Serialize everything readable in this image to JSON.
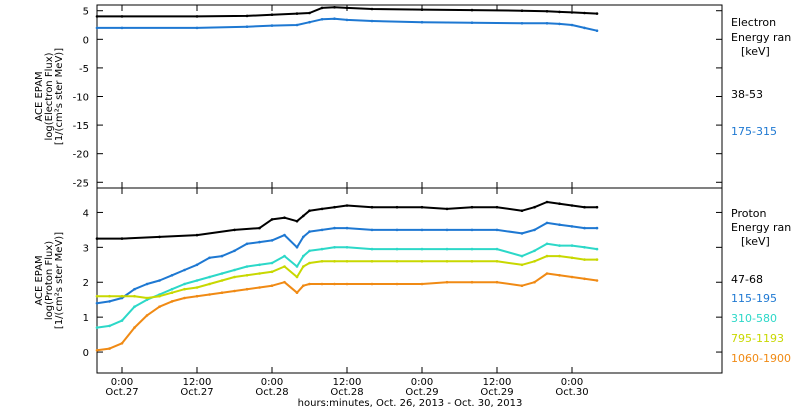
{
  "chart_data": [
    {
      "type": "scatter",
      "ylabel": [
        "ACE EPAM",
        "log(Electron Flux)",
        "[1/(cm²s ster MeV)]"
      ],
      "ylim": [
        -26,
        6
      ],
      "yticks": [
        5,
        0,
        -5,
        -10,
        -15,
        -20,
        -25
      ],
      "legend_title": [
        "Electron",
        "Energy ran",
        "[keV]"
      ],
      "series": [
        {
          "name": "38-53",
          "color": "#000000",
          "x": [
            -4,
            0,
            12,
            20,
            24,
            28,
            30,
            32,
            34,
            36,
            40,
            48,
            56,
            64,
            68,
            70,
            72,
            74,
            76
          ],
          "y": [
            4.0,
            4.0,
            4.0,
            4.1,
            4.3,
            4.5,
            4.6,
            5.5,
            5.6,
            5.5,
            5.3,
            5.2,
            5.1,
            5.0,
            4.9,
            4.8,
            4.7,
            4.6,
            4.5
          ]
        },
        {
          "name": "175-315",
          "color": "#1e78d2",
          "x": [
            -4,
            0,
            12,
            20,
            24,
            28,
            30,
            32,
            34,
            36,
            40,
            48,
            56,
            64,
            68,
            70,
            72,
            74,
            76
          ],
          "y": [
            2.0,
            2.0,
            2.0,
            2.2,
            2.4,
            2.5,
            3.0,
            3.5,
            3.6,
            3.4,
            3.2,
            3.0,
            2.9,
            2.8,
            2.8,
            2.7,
            2.5,
            2.0,
            1.5
          ]
        }
      ]
    },
    {
      "type": "scatter",
      "ylabel": [
        "ACE EPAM",
        "log(Proton Flux)",
        "[1/(cm²s ster MeV)]"
      ],
      "ylim": [
        -0.6,
        4.7
      ],
      "yticks": [
        4,
        3,
        2,
        1,
        0
      ],
      "legend_title": [
        "Proton",
        "Energy ran",
        "[keV]"
      ],
      "series": [
        {
          "name": "47-68",
          "color": "#000000",
          "x": [
            -4,
            0,
            6,
            12,
            18,
            22,
            24,
            26,
            28,
            29,
            30,
            32,
            34,
            36,
            40,
            44,
            48,
            52,
            56,
            60,
            64,
            66,
            68,
            70,
            72,
            74,
            76
          ],
          "y": [
            3.25,
            3.25,
            3.3,
            3.35,
            3.5,
            3.55,
            3.8,
            3.85,
            3.75,
            3.9,
            4.05,
            4.1,
            4.15,
            4.2,
            4.15,
            4.15,
            4.15,
            4.1,
            4.15,
            4.15,
            4.05,
            4.15,
            4.3,
            4.25,
            4.2,
            4.15,
            4.15
          ]
        },
        {
          "name": "115-195",
          "color": "#1e78d2",
          "x": [
            -4,
            -2,
            0,
            2,
            4,
            6,
            8,
            10,
            12,
            14,
            16,
            18,
            20,
            22,
            24,
            26,
            28,
            29,
            30,
            32,
            34,
            36,
            40,
            44,
            48,
            52,
            56,
            60,
            64,
            66,
            68,
            70,
            72,
            74,
            76
          ],
          "y": [
            1.4,
            1.45,
            1.55,
            1.8,
            1.95,
            2.05,
            2.2,
            2.35,
            2.5,
            2.7,
            2.75,
            2.9,
            3.1,
            3.15,
            3.2,
            3.35,
            3.0,
            3.3,
            3.45,
            3.5,
            3.55,
            3.55,
            3.5,
            3.5,
            3.5,
            3.5,
            3.5,
            3.5,
            3.4,
            3.5,
            3.7,
            3.65,
            3.6,
            3.55,
            3.55
          ]
        },
        {
          "name": "310-580",
          "color": "#2cd8c8",
          "x": [
            -4,
            -2,
            0,
            2,
            4,
            6,
            8,
            10,
            12,
            14,
            16,
            18,
            20,
            22,
            24,
            26,
            28,
            29,
            30,
            32,
            34,
            36,
            40,
            44,
            48,
            52,
            56,
            60,
            64,
            66,
            68,
            70,
            72,
            74,
            76
          ],
          "y": [
            0.7,
            0.75,
            0.9,
            1.3,
            1.5,
            1.65,
            1.8,
            1.95,
            2.05,
            2.15,
            2.25,
            2.35,
            2.45,
            2.5,
            2.55,
            2.75,
            2.45,
            2.75,
            2.9,
            2.95,
            3.0,
            3.0,
            2.95,
            2.95,
            2.95,
            2.95,
            2.95,
            2.95,
            2.75,
            2.9,
            3.1,
            3.05,
            3.05,
            3.0,
            2.95
          ]
        },
        {
          "name": "795-1193",
          "color": "#c8d800",
          "x": [
            -4,
            -2,
            0,
            2,
            4,
            6,
            8,
            10,
            12,
            14,
            16,
            18,
            20,
            22,
            24,
            26,
            28,
            29,
            30,
            32,
            34,
            36,
            40,
            44,
            48,
            52,
            56,
            60,
            64,
            66,
            68,
            70,
            72,
            74,
            76
          ],
          "y": [
            1.6,
            1.6,
            1.6,
            1.6,
            1.55,
            1.6,
            1.7,
            1.8,
            1.85,
            1.95,
            2.05,
            2.15,
            2.2,
            2.25,
            2.3,
            2.45,
            2.15,
            2.45,
            2.55,
            2.6,
            2.6,
            2.6,
            2.6,
            2.6,
            2.6,
            2.6,
            2.6,
            2.6,
            2.5,
            2.6,
            2.75,
            2.75,
            2.7,
            2.65,
            2.65
          ]
        },
        {
          "name": "1060-1900",
          "color": "#f08a14",
          "x": [
            -4,
            -2,
            0,
            2,
            4,
            6,
            8,
            10,
            12,
            14,
            16,
            18,
            20,
            22,
            24,
            26,
            28,
            29,
            30,
            32,
            34,
            36,
            40,
            44,
            48,
            52,
            56,
            60,
            64,
            66,
            68,
            70,
            72,
            74,
            76
          ],
          "y": [
            0.05,
            0.1,
            0.25,
            0.7,
            1.05,
            1.3,
            1.45,
            1.55,
            1.6,
            1.65,
            1.7,
            1.75,
            1.8,
            1.85,
            1.9,
            2.0,
            1.7,
            1.9,
            1.95,
            1.95,
            1.95,
            1.95,
            1.95,
            1.95,
            1.95,
            2.0,
            2.0,
            2.0,
            1.9,
            2.0,
            2.25,
            2.2,
            2.15,
            2.1,
            2.05
          ]
        }
      ]
    }
  ],
  "x_axis": {
    "xlim": [
      -4,
      96
    ],
    "ticks": [
      {
        "x": 0,
        "time": "0:00",
        "date": "Oct.27"
      },
      {
        "x": 12,
        "time": "12:00",
        "date": "Oct.27"
      },
      {
        "x": 24,
        "time": "0:00",
        "date": "Oct.28"
      },
      {
        "x": 36,
        "time": "12:00",
        "date": "Oct.28"
      },
      {
        "x": 48,
        "time": "0:00",
        "date": "Oct.29"
      },
      {
        "x": 60,
        "time": "12:00",
        "date": "Oct.29"
      },
      {
        "x": 72,
        "time": "0:00",
        "date": "Oct.30"
      }
    ],
    "label": "hours:minutes, Oct. 26, 2013 - Oct. 30, 2013"
  }
}
